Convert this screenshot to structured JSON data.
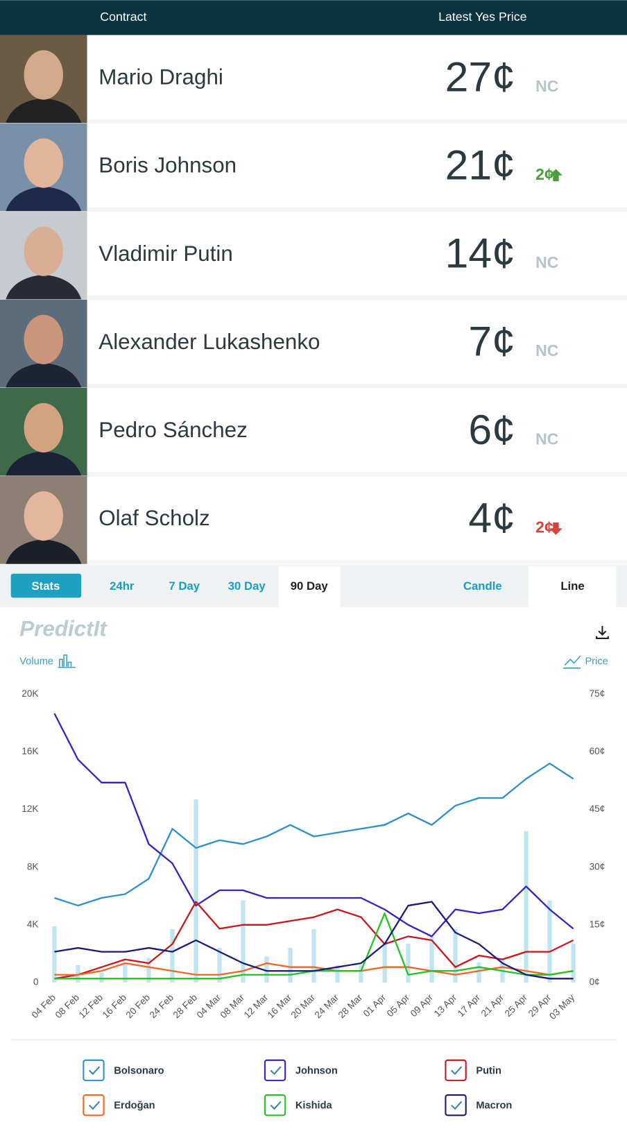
{
  "header": {
    "contract": "Contract",
    "price": "Latest Yes Price"
  },
  "contracts": [
    {
      "name": "Mario Draghi",
      "price": "27¢",
      "change": "NC",
      "trend": "none"
    },
    {
      "name": "Boris Johnson",
      "price": "21¢",
      "change": "2¢",
      "trend": "up"
    },
    {
      "name": "Vladimir Putin",
      "price": "14¢",
      "change": "NC",
      "trend": "none"
    },
    {
      "name": "Alexander Lukashenko",
      "price": "7¢",
      "change": "NC",
      "trend": "none"
    },
    {
      "name": "Pedro Sánchez",
      "price": "6¢",
      "change": "NC",
      "trend": "none"
    },
    {
      "name": "Olaf Scholz",
      "price": "4¢",
      "change": "2¢",
      "trend": "down"
    }
  ],
  "tabs": [
    "Stats",
    "24hr",
    "7 Day",
    "30 Day",
    "90 Day",
    "Candle",
    "Line"
  ],
  "chart_data": {
    "type": "line",
    "brand": "PredictIt",
    "y_label": "Volume",
    "y2_label": "Price",
    "categories": [
      "04 Feb",
      "08 Feb",
      "12 Feb",
      "16 Feb",
      "20 Feb",
      "24 Feb",
      "28 Feb",
      "04 Mar",
      "08 Mar",
      "12 Mar",
      "16 Mar",
      "20 Mar",
      "24 Mar",
      "28 Mar",
      "01 Apr",
      "05 Apr",
      "09 Apr",
      "13 Apr",
      "17 Apr",
      "21 Apr",
      "25 Apr",
      "29 Apr",
      "03 May"
    ],
    "ylim": [
      0,
      20000
    ],
    "yticks": [
      0,
      {
        "value": 4000,
        "label": "4K"
      },
      {
        "value": 8000,
        "label": "8K"
      },
      {
        "value": 12000,
        "label": "12K"
      },
      {
        "value": 16000,
        "label": "16K"
      },
      {
        "value": 20000,
        "label": "20K"
      }
    ],
    "y2lim": [
      0,
      75
    ],
    "y2ticks": [
      {
        "value": 0,
        "label": "0¢"
      },
      {
        "value": 15,
        "label": "15¢"
      },
      {
        "value": 30,
        "label": "30¢"
      },
      {
        "value": 45,
        "label": "45¢"
      },
      {
        "value": 60,
        "label": "60¢"
      },
      {
        "value": 75,
        "label": "75¢"
      }
    ],
    "volume_color": "#bfe6f0",
    "volume": [
      3900,
      1200,
      700,
      1400,
      1700,
      3700,
      12700,
      2400,
      5700,
      1800,
      2400,
      3700,
      1200,
      1200,
      2700,
      2700,
      3200,
      3700,
      1400,
      1700,
      10500,
      5700,
      2700
    ],
    "series": [
      {
        "name": "Bolsonaro",
        "color": "#2e8fce",
        "axis": "y2",
        "values": [
          22,
          20,
          22,
          23,
          27,
          40,
          35,
          37,
          36,
          38,
          41,
          38,
          39,
          40,
          41,
          44,
          41,
          46,
          48,
          48,
          53,
          57,
          53
        ]
      },
      {
        "name": "Johnson",
        "color": "#3b1fc2",
        "axis": "y2",
        "values": [
          70,
          58,
          52,
          52,
          36,
          31,
          20,
          24,
          24,
          22,
          22,
          22,
          22,
          22,
          19,
          15,
          12,
          19,
          18,
          19,
          25,
          19,
          14
        ]
      },
      {
        "name": "Putin",
        "color": "#c8161d",
        "axis": "y2",
        "values": [
          1,
          2,
          4,
          6,
          5,
          10,
          21,
          14,
          15,
          15,
          16,
          17,
          19,
          17,
          10,
          12,
          11,
          4,
          7,
          6,
          8,
          8,
          11
        ]
      },
      {
        "name": "Erdoğan",
        "color": "#f26522",
        "axis": "y2",
        "values": [
          2,
          2,
          3,
          5,
          4,
          3,
          2,
          2,
          3,
          5,
          4,
          4,
          3,
          3,
          4,
          4,
          3,
          2,
          3,
          4,
          3,
          2,
          3
        ]
      },
      {
        "name": "Kishida",
        "color": "#22c322",
        "axis": "y2",
        "values": [
          1,
          1,
          1,
          1,
          1,
          1,
          1,
          1,
          2,
          2,
          2,
          3,
          3,
          3,
          18,
          2,
          3,
          3,
          4,
          3,
          2,
          2,
          3
        ]
      },
      {
        "name": "Macron",
        "color": "#1a1a7a",
        "axis": "y2",
        "values": [
          8,
          9,
          8,
          8,
          9,
          8,
          11,
          8,
          5,
          3,
          3,
          3,
          4,
          5,
          10,
          20,
          21,
          13,
          10,
          5,
          2,
          1,
          1
        ]
      }
    ]
  }
}
